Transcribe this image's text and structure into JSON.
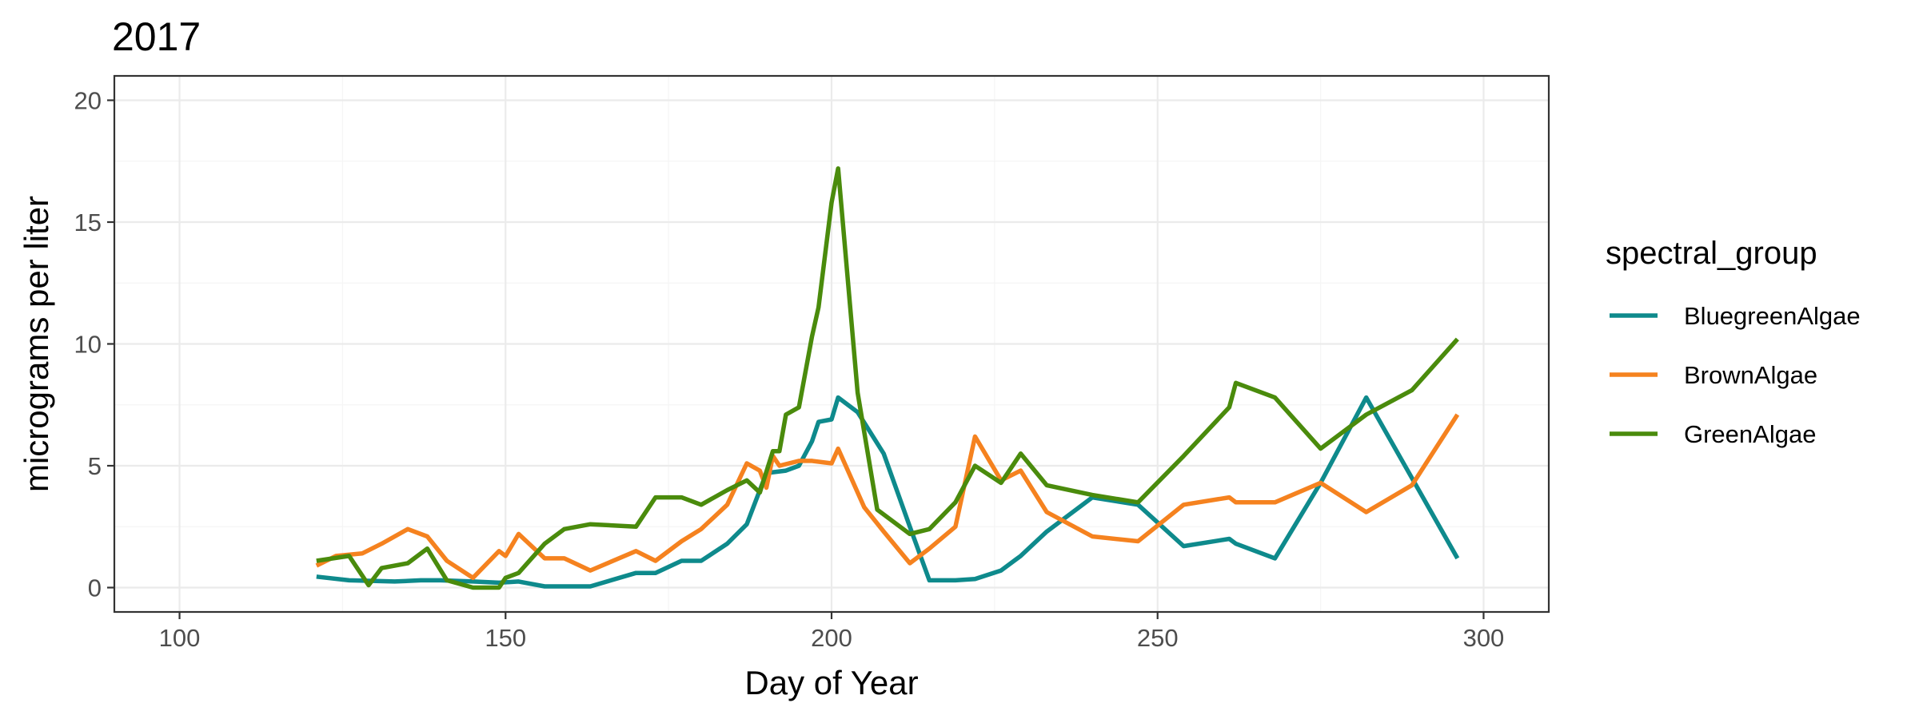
{
  "chart_data": {
    "type": "line",
    "title": "2017",
    "xlabel": "Day of Year",
    "ylabel": "micrograms per liter",
    "xlim": [
      90,
      310
    ],
    "ylim": [
      -1,
      21
    ],
    "x_ticks": [
      100,
      150,
      200,
      250,
      300
    ],
    "y_ticks": [
      0,
      5,
      10,
      15,
      20
    ],
    "grid": true,
    "legend": {
      "title": "spectral_group",
      "position": "right"
    },
    "series": [
      {
        "name": "BluegreenAlgae",
        "color": "#0e8a8c",
        "x": [
          121,
          126,
          133,
          137,
          140,
          145,
          149,
          152,
          156,
          159,
          163,
          170,
          173,
          177,
          180,
          184,
          187,
          190,
          193,
          195,
          197,
          198,
          200,
          201,
          204,
          208,
          212,
          215,
          219,
          222,
          226,
          229,
          233,
          240,
          247,
          254,
          261,
          262,
          268,
          275,
          282,
          289,
          296
        ],
        "values": [
          0.45,
          0.3,
          0.25,
          0.3,
          0.3,
          0.25,
          0.2,
          0.25,
          0.05,
          0.05,
          0.05,
          0.6,
          0.6,
          1.1,
          1.1,
          1.8,
          2.6,
          4.7,
          4.8,
          5.0,
          6.0,
          6.8,
          6.9,
          7.8,
          7.2,
          5.5,
          2.5,
          0.3,
          0.3,
          0.35,
          0.7,
          1.3,
          2.3,
          3.7,
          3.4,
          1.7,
          2.0,
          1.8,
          1.2,
          4.3,
          7.8,
          4.5,
          1.2
        ]
      },
      {
        "name": "BrownAlgae",
        "color": "#f5821f",
        "x": [
          121,
          124,
          128,
          131,
          135,
          138,
          141,
          145,
          149,
          150,
          152,
          156,
          159,
          163,
          170,
          173,
          177,
          180,
          184,
          187,
          189,
          190,
          191,
          192,
          195,
          197,
          200,
          201,
          205,
          208,
          212,
          215,
          219,
          222,
          226,
          229,
          233,
          240,
          247,
          254,
          261,
          262,
          268,
          275,
          282,
          289,
          296
        ],
        "values": [
          0.9,
          1.3,
          1.4,
          1.8,
          2.4,
          2.1,
          1.1,
          0.4,
          1.5,
          1.3,
          2.2,
          1.2,
          1.2,
          0.7,
          1.5,
          1.1,
          1.9,
          2.4,
          3.4,
          5.1,
          4.8,
          4.1,
          5.4,
          5.0,
          5.2,
          5.2,
          5.1,
          5.7,
          3.3,
          2.3,
          1.0,
          1.6,
          2.5,
          6.2,
          4.4,
          4.8,
          3.1,
          2.1,
          1.9,
          3.4,
          3.7,
          3.5,
          3.5,
          4.3,
          3.1,
          4.2,
          7.1
        ]
      },
      {
        "name": "GreenAlgae",
        "color": "#4a8b0c",
        "x": [
          121,
          126,
          128,
          129,
          131,
          135,
          138,
          141,
          145,
          147,
          149,
          150,
          152,
          156,
          159,
          163,
          170,
          173,
          177,
          180,
          184,
          187,
          189,
          191,
          192,
          193,
          195,
          197,
          198,
          200,
          201,
          204,
          207,
          212,
          215,
          219,
          222,
          226,
          229,
          233,
          240,
          247,
          254,
          261,
          262,
          268,
          275,
          282,
          289,
          296
        ],
        "values": [
          1.1,
          1.3,
          0.5,
          0.1,
          0.8,
          1.0,
          1.6,
          0.3,
          0.0,
          0.0,
          0.0,
          0.4,
          0.6,
          1.8,
          2.4,
          2.6,
          2.5,
          3.7,
          3.7,
          3.4,
          4.0,
          4.4,
          3.9,
          5.6,
          5.6,
          7.1,
          7.4,
          10.3,
          11.5,
          15.8,
          17.2,
          8.0,
          3.2,
          2.2,
          2.4,
          3.5,
          5.0,
          4.3,
          5.5,
          4.2,
          3.8,
          3.5,
          5.4,
          7.4,
          8.4,
          7.8,
          5.7,
          7.1,
          8.1,
          10.2
        ]
      }
    ]
  }
}
